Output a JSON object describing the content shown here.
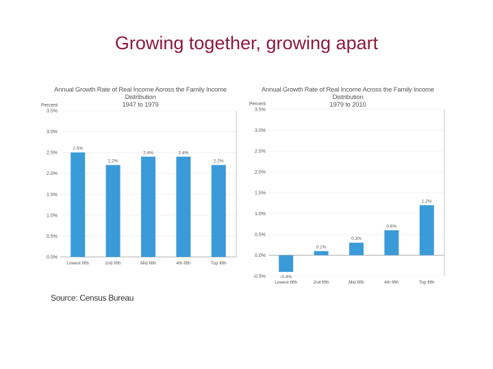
{
  "slide": {
    "title": "Growing together, growing apart",
    "source": "Source: Census Bureau"
  },
  "colors": {
    "bar": "#3b9ad8",
    "title": "#8b1a3a",
    "axis_text": "#555555"
  },
  "chart_data": [
    {
      "type": "bar",
      "title": "Annual Growth Rate of Real Income Across the Family Income Distribution",
      "subtitle": "1947 to 1979",
      "ylabel": "Percent",
      "categories": [
        "Lowest fifth",
        "2nd fifth",
        "Mid fifth",
        "4th fifth",
        "Top fifth"
      ],
      "values": [
        2.5,
        2.2,
        2.4,
        2.4,
        2.2
      ],
      "data_labels": [
        "2.5%",
        "2.2%",
        "2.4%",
        "2.4%",
        "2.2%"
      ],
      "yticks": [
        "0.0%",
        "0.5%",
        "1.0%",
        "1.5%",
        "2.0%",
        "2.5%",
        "3.0%",
        "3.5%"
      ],
      "ylim": [
        0,
        3.5
      ]
    },
    {
      "type": "bar",
      "title": "Annual Growth Rate of Real Income Across the Family Income Distribution",
      "subtitle": "1979 to 2010",
      "ylabel": "Percent",
      "categories": [
        "Lowest fifth",
        "2nd fifth",
        "Mid fifth",
        "4th fifth",
        "Top fifth"
      ],
      "values": [
        -0.4,
        0.1,
        0.3,
        0.6,
        1.2
      ],
      "data_labels": [
        "-0.4%",
        "0.1%",
        "0.3%",
        "0.6%",
        "1.2%"
      ],
      "yticks": [
        "-0.5%",
        "0.0%",
        "0.5%",
        "1.0%",
        "1.5%",
        "2.0%",
        "2.5%",
        "3.0%",
        "3.5%"
      ],
      "ylim": [
        -0.5,
        3.5
      ]
    }
  ]
}
